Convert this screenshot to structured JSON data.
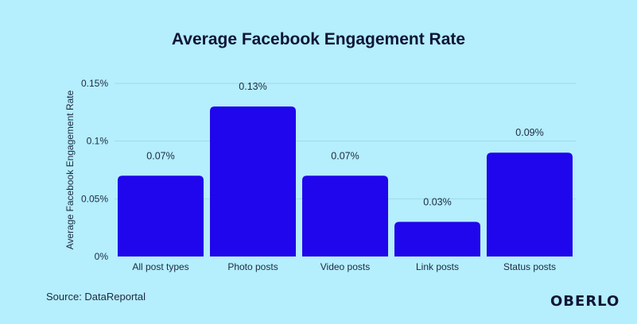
{
  "chart_data": {
    "type": "bar",
    "title": "Average Facebook Engagement Rate",
    "xlabel": "",
    "ylabel": "Average Facebook Engagement Rate",
    "categories": [
      "All post types",
      "Photo posts",
      "Video posts",
      "Link posts",
      "Status posts"
    ],
    "values": [
      0.07,
      0.13,
      0.07,
      0.03,
      0.09
    ],
    "data_labels": [
      "0.07%",
      "0.13%",
      "0.07%",
      "0.03%",
      "0.09%"
    ],
    "ylim": [
      0,
      0.15
    ],
    "yticks": [
      0,
      0.05,
      0.1,
      0.15
    ],
    "ytick_labels": [
      "0%",
      "0.05%",
      "0.1%",
      "0.15%"
    ],
    "grid": true,
    "bar_color": "#1f06ec",
    "background_color": "#b5eefc"
  },
  "footer": {
    "source": "Source: DataReportal",
    "logo": "OBERLO"
  }
}
